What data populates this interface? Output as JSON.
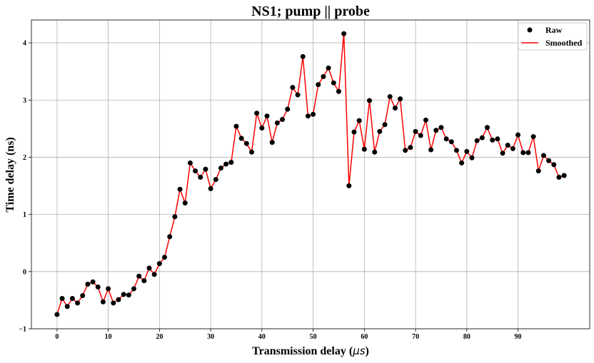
{
  "chart_data": {
    "type": "line",
    "title": "NS1; pump || probe",
    "xlabel_main": "Transmission delay (",
    "xlabel_unit": "μs",
    "xlabel_close": ")",
    "ylabel": "Time delay (ns)",
    "xlim": [
      -5,
      104
    ],
    "ylim": [
      -1,
      4.4
    ],
    "xticks": [
      0,
      10,
      20,
      30,
      40,
      50,
      60,
      70,
      80,
      90
    ],
    "yticks": [
      -1,
      0,
      1,
      2,
      3,
      4
    ],
    "grid": true,
    "legend_position": "top-right",
    "series": [
      {
        "name": "Raw",
        "kind": "scatter",
        "color": "#000000",
        "x": [
          0,
          1,
          2,
          3,
          4,
          5,
          6,
          7,
          8,
          9,
          10,
          11,
          12,
          13,
          14,
          15,
          16,
          17,
          18,
          19,
          20,
          21,
          22,
          23,
          24,
          25,
          26,
          27,
          28,
          29,
          30,
          31,
          32,
          33,
          34,
          35,
          36,
          37,
          38,
          39,
          40,
          41,
          42,
          43,
          44,
          45,
          46,
          47,
          48,
          49,
          50,
          51,
          52,
          53,
          54,
          55,
          56,
          57,
          58,
          59,
          60,
          61,
          62,
          63,
          64,
          65,
          66,
          67,
          68,
          69,
          70,
          71,
          72,
          73,
          74,
          75,
          76,
          77,
          78,
          79,
          80,
          81,
          82,
          83,
          84,
          85,
          86,
          87,
          88,
          89,
          90,
          91,
          92,
          93,
          94,
          95,
          96,
          97,
          98,
          99
        ],
        "y": [
          -0.75,
          -0.47,
          -0.61,
          -0.47,
          -0.55,
          -0.42,
          -0.22,
          -0.18,
          -0.27,
          -0.53,
          -0.3,
          -0.55,
          -0.49,
          -0.4,
          -0.41,
          -0.3,
          -0.08,
          -0.16,
          0.06,
          -0.05,
          0.14,
          0.25,
          0.61,
          0.96,
          1.44,
          1.2,
          1.9,
          1.76,
          1.65,
          1.79,
          1.45,
          1.61,
          1.81,
          1.88,
          1.91,
          2.54,
          2.33,
          2.24,
          2.09,
          2.77,
          2.51,
          2.72,
          2.26,
          2.6,
          2.66,
          2.84,
          3.22,
          3.09,
          3.76,
          2.72,
          2.75,
          3.27,
          3.41,
          3.56,
          3.3,
          3.15,
          4.16,
          1.5,
          2.44,
          2.64,
          2.14,
          2.99,
          2.09,
          2.45,
          2.57,
          3.06,
          2.86,
          3.02,
          2.12,
          2.17,
          2.45,
          2.38,
          2.65,
          2.13,
          2.47,
          2.52,
          2.32,
          2.27,
          2.12,
          1.9,
          2.1,
          1.99,
          2.29,
          2.34,
          2.52,
          2.3,
          2.32,
          2.07,
          2.21,
          2.15,
          2.39,
          2.08,
          2.08,
          2.36,
          1.76,
          2.03,
          1.94,
          1.87,
          1.65,
          1.68
        ]
      },
      {
        "name": "Smoothed",
        "kind": "line",
        "color": "#ff0000",
        "same_as": "Raw"
      }
    ]
  }
}
